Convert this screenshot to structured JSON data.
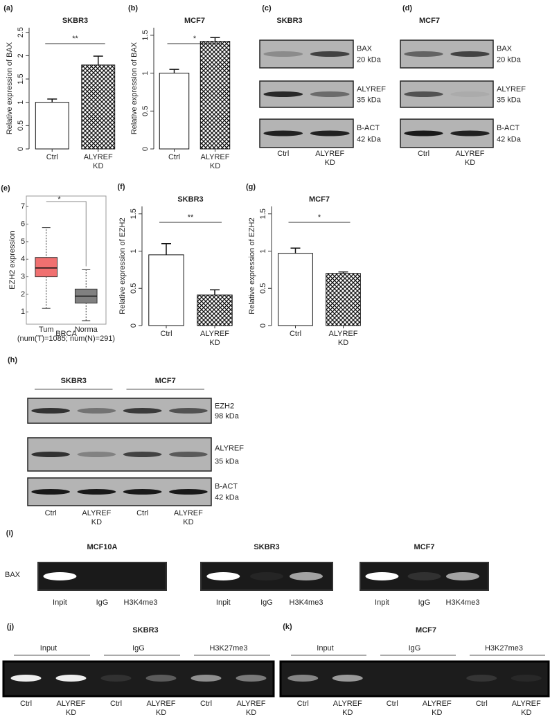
{
  "chart_data": [
    {
      "type": "bar",
      "panel": "(a)",
      "title": "SKBR3",
      "y_label": "Relative expression of BAX",
      "categories": [
        "Ctrl",
        "ALYREF KD"
      ],
      "values": [
        1.0,
        1.8
      ],
      "errors": [
        0.07,
        0.19
      ],
      "ylim": [
        0,
        2.6
      ],
      "yticks": [
        0,
        0.5,
        1,
        1.5,
        2,
        2.5
      ],
      "annotation": "**"
    },
    {
      "type": "bar",
      "panel": "(b)",
      "title": "MCF7",
      "y_label": "Relative expression of BAX",
      "categories": [
        "Ctrl",
        "ALYREF KD"
      ],
      "values": [
        1.0,
        1.42
      ],
      "errors": [
        0.05,
        0.05
      ],
      "ylim": [
        0,
        1.6
      ],
      "yticks": [
        0,
        0.5,
        1,
        1.5
      ],
      "annotation": "*"
    },
    {
      "type": "box",
      "panel": "(e)",
      "y_label": "EZH2 expression",
      "categories": [
        "Tum",
        "Norma"
      ],
      "x_label": "BRCA",
      "note": "(num(T)=1085; num(N)=291)",
      "annotation": "*",
      "ylim": [
        0.3,
        7.6
      ],
      "yticks": [
        1,
        2,
        3,
        4,
        5,
        6,
        7
      ],
      "boxes": [
        {
          "min": 1.2,
          "q1": 3.0,
          "median": 3.5,
          "q3": 4.1,
          "max": 5.8,
          "color": "#f07070"
        },
        {
          "min": 0.5,
          "q1": 1.5,
          "median": 1.9,
          "q3": 2.3,
          "max": 3.4,
          "color": "#808080"
        }
      ]
    },
    {
      "type": "bar",
      "panel": "(f)",
      "title": "SKBR3",
      "y_label": "Relative expression of EZH2",
      "categories": [
        "Ctrl",
        "ALYREF KD"
      ],
      "values": [
        0.95,
        0.41
      ],
      "errors": [
        0.15,
        0.07
      ],
      "ylim": [
        0,
        1.6
      ],
      "yticks": [
        0,
        0.5,
        1,
        1.5
      ],
      "annotation": "**"
    },
    {
      "type": "bar",
      "panel": "(g)",
      "title": "MCF7",
      "y_label": "Relative expression of EZH2",
      "categories": [
        "Ctrl",
        "ALYREF KD"
      ],
      "values": [
        0.97,
        0.7
      ],
      "errors": [
        0.07,
        0.02
      ],
      "ylim": [
        0,
        1.6
      ],
      "yticks": [
        0,
        0.5,
        1,
        1.5
      ],
      "annotation": "*"
    }
  ],
  "blots": [
    {
      "panel": "(c)",
      "title": "SKBR3",
      "rows": [
        [
          "BAX",
          "20 kDa"
        ],
        [
          "ALYREF",
          "35 kDa"
        ],
        [
          "B-ACT",
          "42 kDa"
        ]
      ],
      "lanes": [
        "Ctrl",
        "ALYREF KD"
      ]
    },
    {
      "panel": "(d)",
      "title": "MCF7",
      "rows": [
        [
          "BAX",
          "20 kDa"
        ],
        [
          "ALYREF",
          "35 kDa"
        ],
        [
          "B-ACT",
          "42 kDa"
        ]
      ],
      "lanes": [
        "Ctrl",
        "ALYREF KD"
      ]
    },
    {
      "panel": "(h)",
      "groups": [
        "SKBR3",
        "MCF7"
      ],
      "rows": [
        [
          "EZH2",
          "98 kDa"
        ],
        [
          "ALYREF",
          "35 kDa"
        ],
        [
          "B-ACT",
          "42 kDa"
        ]
      ],
      "lanes": [
        "Ctrl",
        "ALYREF KD",
        "Ctrl",
        "ALYREF KD"
      ]
    }
  ],
  "chip": {
    "panel": "(i)",
    "row_label": "BAX",
    "gels": [
      {
        "title": "MCF10A",
        "lanes": [
          "Inpit",
          "IgG",
          "H3K4me3"
        ]
      },
      {
        "title": "SKBR3",
        "lanes": [
          "Inpit",
          "IgG",
          "H3K4me3"
        ]
      },
      {
        "title": "MCF7",
        "lanes": [
          "Inpit",
          "IgG",
          "H3K4me3"
        ]
      }
    ]
  },
  "chip2": [
    {
      "panel": "(j)",
      "title": "SKBR3",
      "groups": [
        "Input",
        "IgG",
        "H3K27me3"
      ],
      "lanes": [
        "Ctrl",
        "ALYREF KD",
        "Ctrl",
        "ALYREF KD",
        "Ctrl",
        "ALYREF KD"
      ]
    },
    {
      "panel": "(k)",
      "title": "MCF7",
      "groups": [
        "Input",
        "IgG",
        "H3K27me3"
      ],
      "lanes": [
        "Ctrl",
        "ALYREF KD",
        "Ctrl",
        "ALYREF KD",
        "Ctrl",
        "ALYREF KD"
      ]
    }
  ]
}
